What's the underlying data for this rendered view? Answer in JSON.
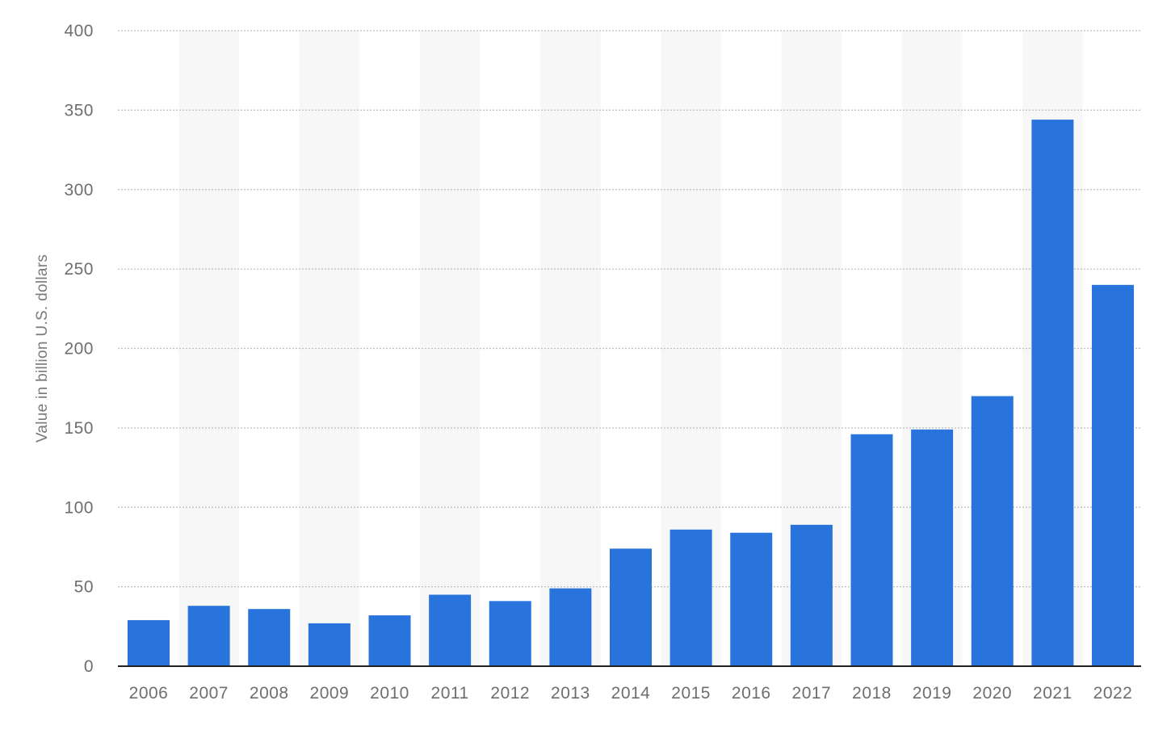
{
  "chart_data": {
    "type": "bar",
    "categories": [
      "2006",
      "2007",
      "2008",
      "2009",
      "2010",
      "2011",
      "2012",
      "2013",
      "2014",
      "2015",
      "2016",
      "2017",
      "2018",
      "2019",
      "2020",
      "2021",
      "2022"
    ],
    "values": [
      29,
      38,
      36,
      27,
      32,
      45,
      41,
      49,
      74,
      86,
      84,
      89,
      146,
      149,
      170,
      344,
      240
    ],
    "title": "",
    "xlabel": "",
    "ylabel": "Value in billion U.S. dollars",
    "ylim": [
      0,
      400
    ],
    "yticks": [
      "0",
      "50",
      "100",
      "150",
      "200",
      "250",
      "300",
      "350",
      "400"
    ],
    "grid": true,
    "bar_color": "#2874dc",
    "alternate_band_color": "#f7f7f8"
  }
}
